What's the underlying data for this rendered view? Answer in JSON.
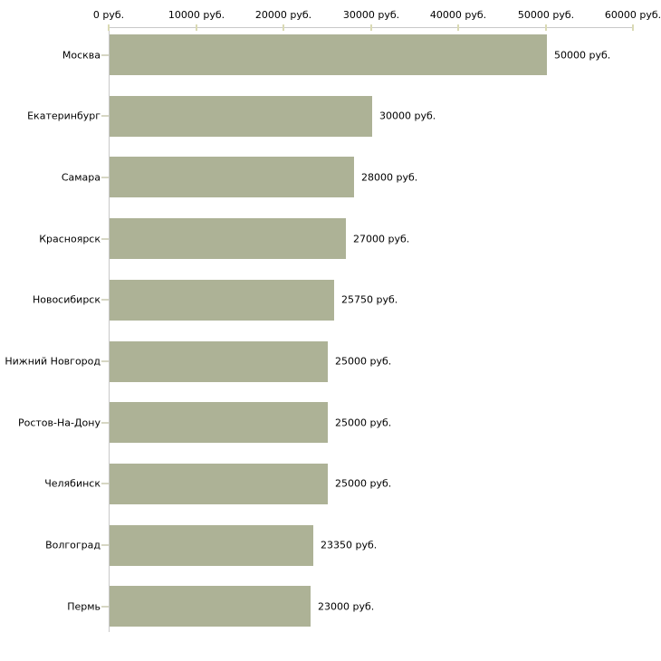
{
  "chart_data": {
    "type": "bar",
    "orientation": "horizontal",
    "title": "",
    "categories": [
      "Москва",
      "Екатеринбург",
      "Самара",
      "Красноярск",
      "Новосибирск",
      "Нижний Новгород",
      "Ростов-На-Дону",
      "Челябинск",
      "Волгоград",
      "Пермь"
    ],
    "values": [
      50000,
      30000,
      28000,
      27000,
      25750,
      25000,
      25000,
      25000,
      23350,
      23000
    ],
    "value_labels": [
      "50000 руб.",
      "30000 руб.",
      "28000 руб.",
      "27000 руб.",
      "25750 руб.",
      "25000 руб.",
      "25000 руб.",
      "25000 руб.",
      "23350 руб.",
      "23000 руб."
    ],
    "x_axis": {
      "position": "top",
      "range": [
        0,
        60000
      ],
      "ticks": [
        0,
        10000,
        20000,
        30000,
        40000,
        50000,
        60000
      ],
      "tick_labels": [
        "0 руб.",
        "10000 руб.",
        "20000 руб.",
        "30000 руб.",
        "40000 руб.",
        "50000 руб.",
        "60000 руб."
      ]
    },
    "grid": false,
    "legend": false,
    "colors": {
      "bar": "#adb296",
      "axis": "#c8c8c8",
      "x_tick": "#dadab4",
      "y_tick": "#d6d6c3",
      "text": "#000000"
    }
  }
}
